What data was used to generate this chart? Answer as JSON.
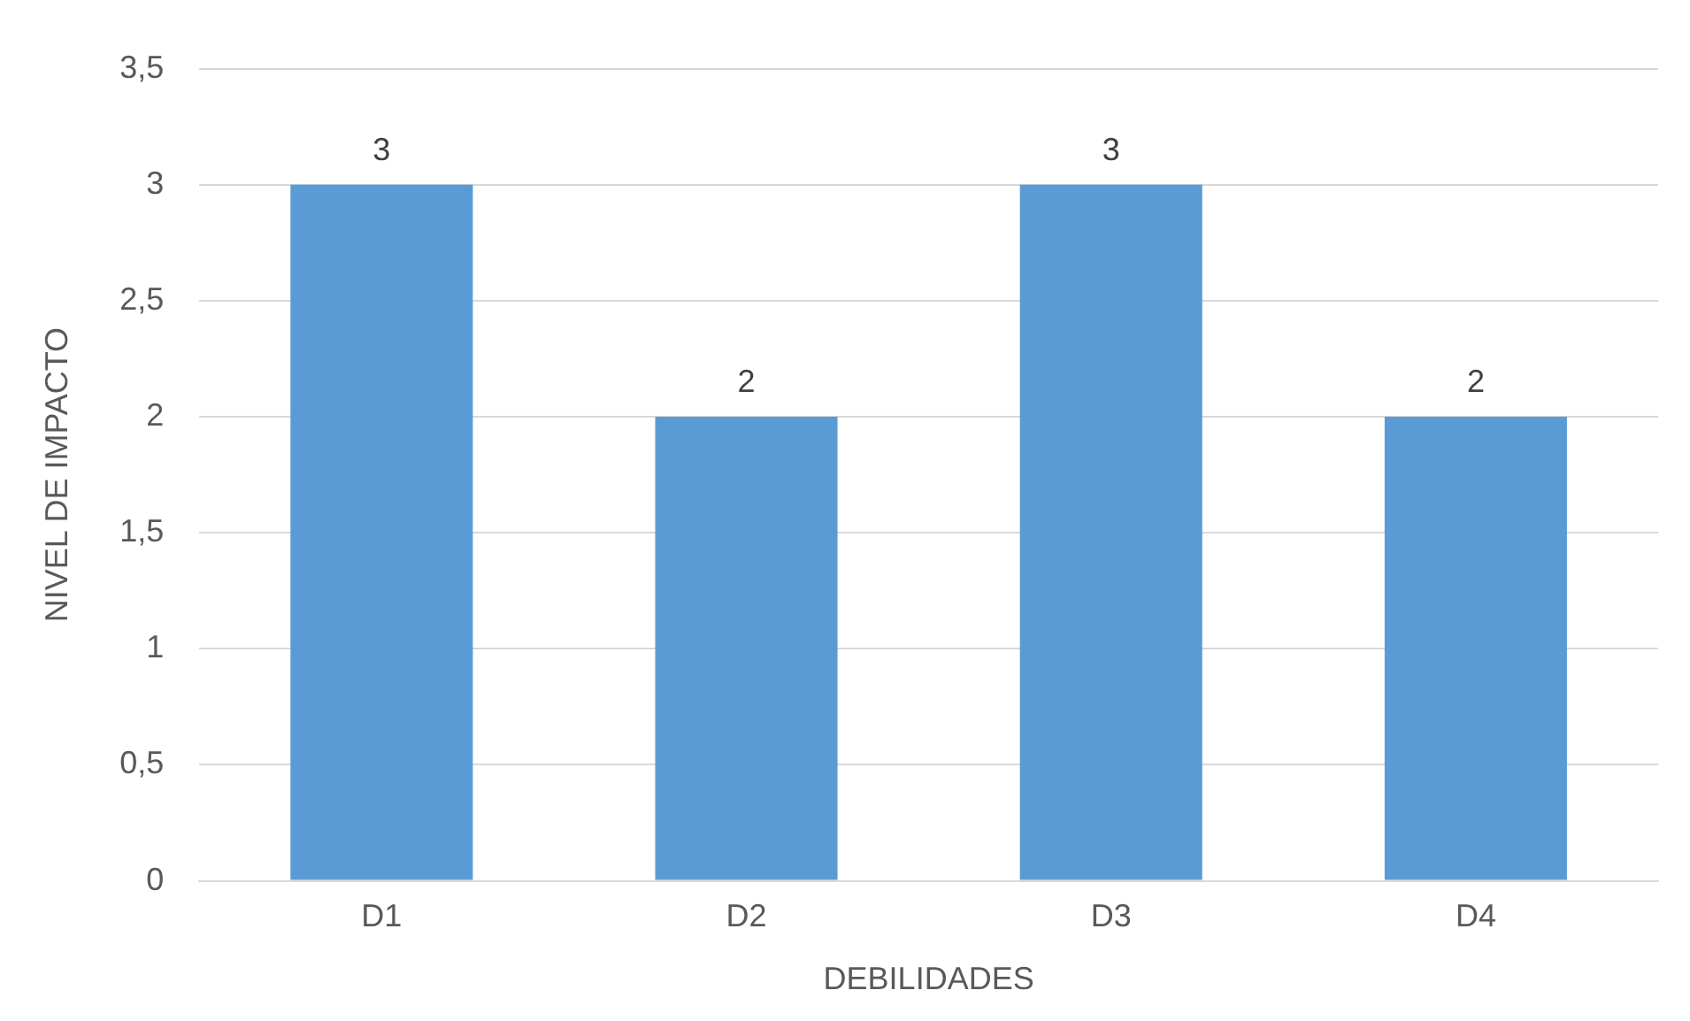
{
  "chart_data": {
    "type": "bar",
    "xlabel": "DEBILIDADES",
    "ylabel": "NIVEL DE IMPACTO",
    "categories": [
      "D1",
      "D2",
      "D3",
      "D4"
    ],
    "values": [
      3,
      2,
      3,
      2
    ],
    "color": "#5b9bd5",
    "ylim": [
      0,
      3.5
    ],
    "yticks": [
      0,
      {
        "value": 0.5,
        "label": "0,5"
      },
      1,
      {
        "value": 1.5,
        "label": "1,5"
      },
      2,
      {
        "value": 2.5,
        "label": "2,5"
      },
      3,
      {
        "value": 3.5,
        "label": "3,5"
      }
    ],
    "grid": "y",
    "data_labels": true,
    "legend": false
  }
}
